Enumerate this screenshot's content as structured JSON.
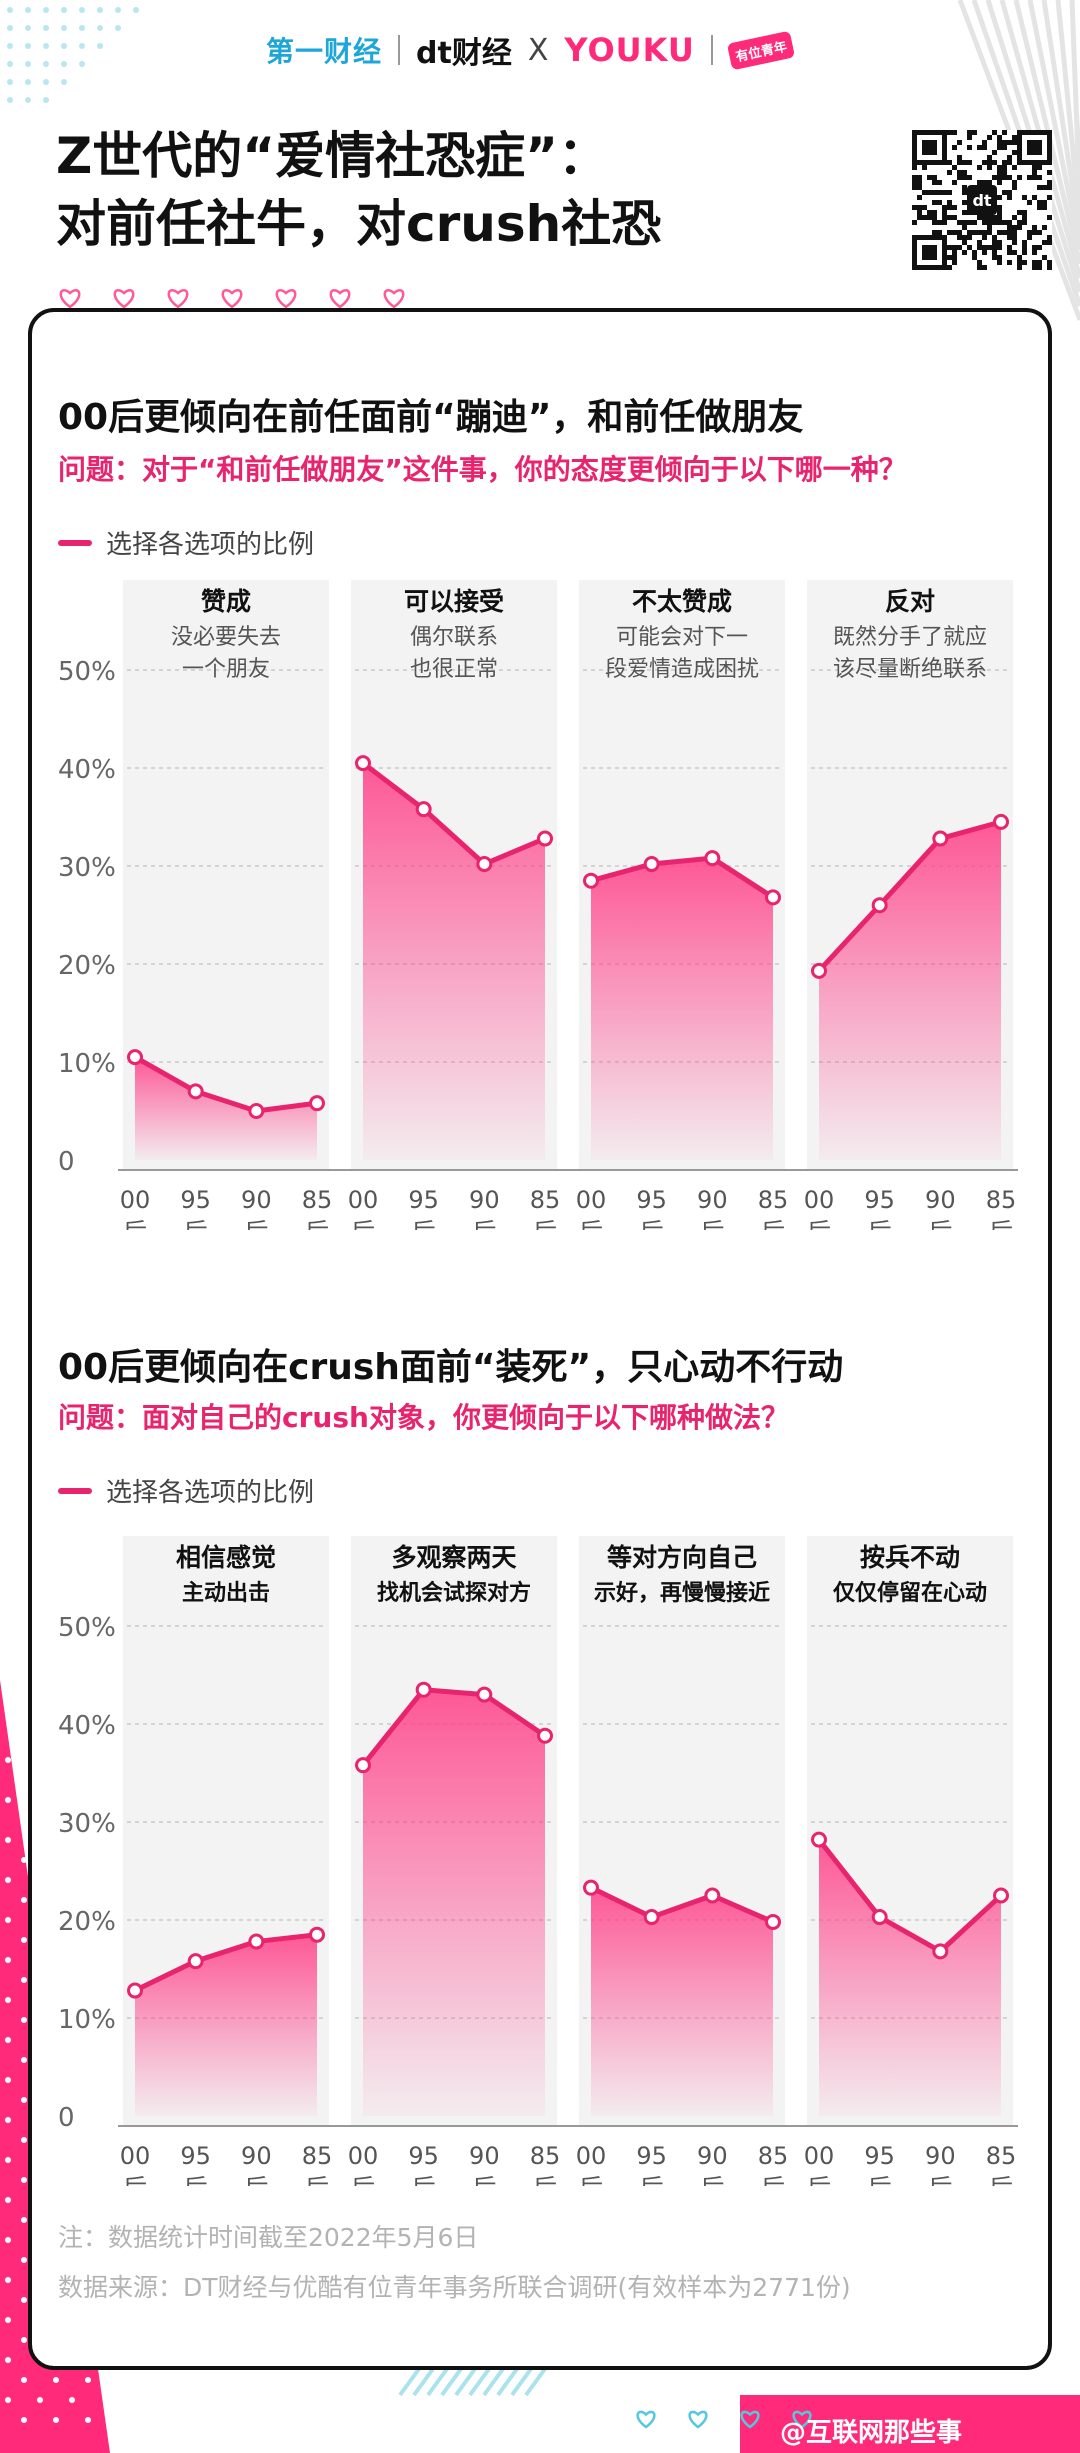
{
  "header": {
    "logo_yicai": "第一财经",
    "logo_dt": "dt财经",
    "logo_x": "X",
    "logo_youku": "YOUKU",
    "logo_badge": "有位青年",
    "title_line1": "Z世代的“爱情社恐症”：",
    "title_line2": "对前任社牛，对crush社恐"
  },
  "sections": [
    {
      "title": "00后更倾向在前任面前“蹦迪”，和前任做朋友",
      "question": "问题：对于“和前任做朋友”这件事，你的态度更倾向于以下哪一种？",
      "legend": "选择各选项的比例"
    },
    {
      "title": "00后更倾向在crush面前“装死”，只心动不行动",
      "question": "问题：面对自己的crush对象，你更倾向于以下哪种做法？",
      "legend": "选择各选项的比例"
    }
  ],
  "chart_data": [
    {
      "type": "area",
      "ylim": [
        0,
        50
      ],
      "y_ticks": [
        "0",
        "10%",
        "20%",
        "30%",
        "40%",
        "50%"
      ],
      "x": [
        "00后",
        "95后",
        "90后",
        "85后"
      ],
      "panels": [
        {
          "name": "赞成",
          "desc": [
            "没必要失去",
            "一个朋友"
          ],
          "values": [
            10.5,
            7,
            5,
            5.8
          ]
        },
        {
          "name": "可以接受",
          "desc": [
            "偶尔联系",
            "也很正常"
          ],
          "values": [
            40.5,
            35.8,
            30.2,
            32.8
          ]
        },
        {
          "name": "不太赞成",
          "desc": [
            "可能会对下一",
            "段爱情造成困扰"
          ],
          "values": [
            28.5,
            30.2,
            30.8,
            26.8
          ]
        },
        {
          "name": "反对",
          "desc": [
            "既然分手了就应",
            "该尽量断绝联系"
          ],
          "values": [
            19.3,
            26,
            32.8,
            34.5
          ]
        }
      ]
    },
    {
      "type": "area",
      "ylim": [
        0,
        50
      ],
      "y_ticks": [
        "0",
        "10%",
        "20%",
        "30%",
        "40%",
        "50%"
      ],
      "x": [
        "00后",
        "95后",
        "90后",
        "85后"
      ],
      "panels": [
        {
          "name": "相信感觉",
          "desc": [
            "主动出击"
          ],
          "values": [
            12.8,
            15.8,
            17.8,
            18.5
          ]
        },
        {
          "name": "多观察两天",
          "desc": [
            "找机会试探对方"
          ],
          "values": [
            35.8,
            43.5,
            43,
            38.8
          ]
        },
        {
          "name": "等对方向自己",
          "desc": [
            "示好，再慢慢接近"
          ],
          "values": [
            23.3,
            20.3,
            22.5,
            19.8
          ]
        },
        {
          "name": "按兵不动",
          "desc": [
            "仅仅停留在心动"
          ],
          "values": [
            28.2,
            20.3,
            16.8,
            22.5
          ]
        }
      ]
    }
  ],
  "notes": {
    "note": "注：数据统计时间截至2022年5月6日",
    "source": "数据来源：DT财经与优酷有位青年事务所联合调研(有效样本为2771份)"
  },
  "footer": {
    "brand": "@互联网那些事"
  },
  "colors": {
    "accent": "#e8246f",
    "panel_bg": "#f3f3f3",
    "grid": "#c9c9c9"
  }
}
